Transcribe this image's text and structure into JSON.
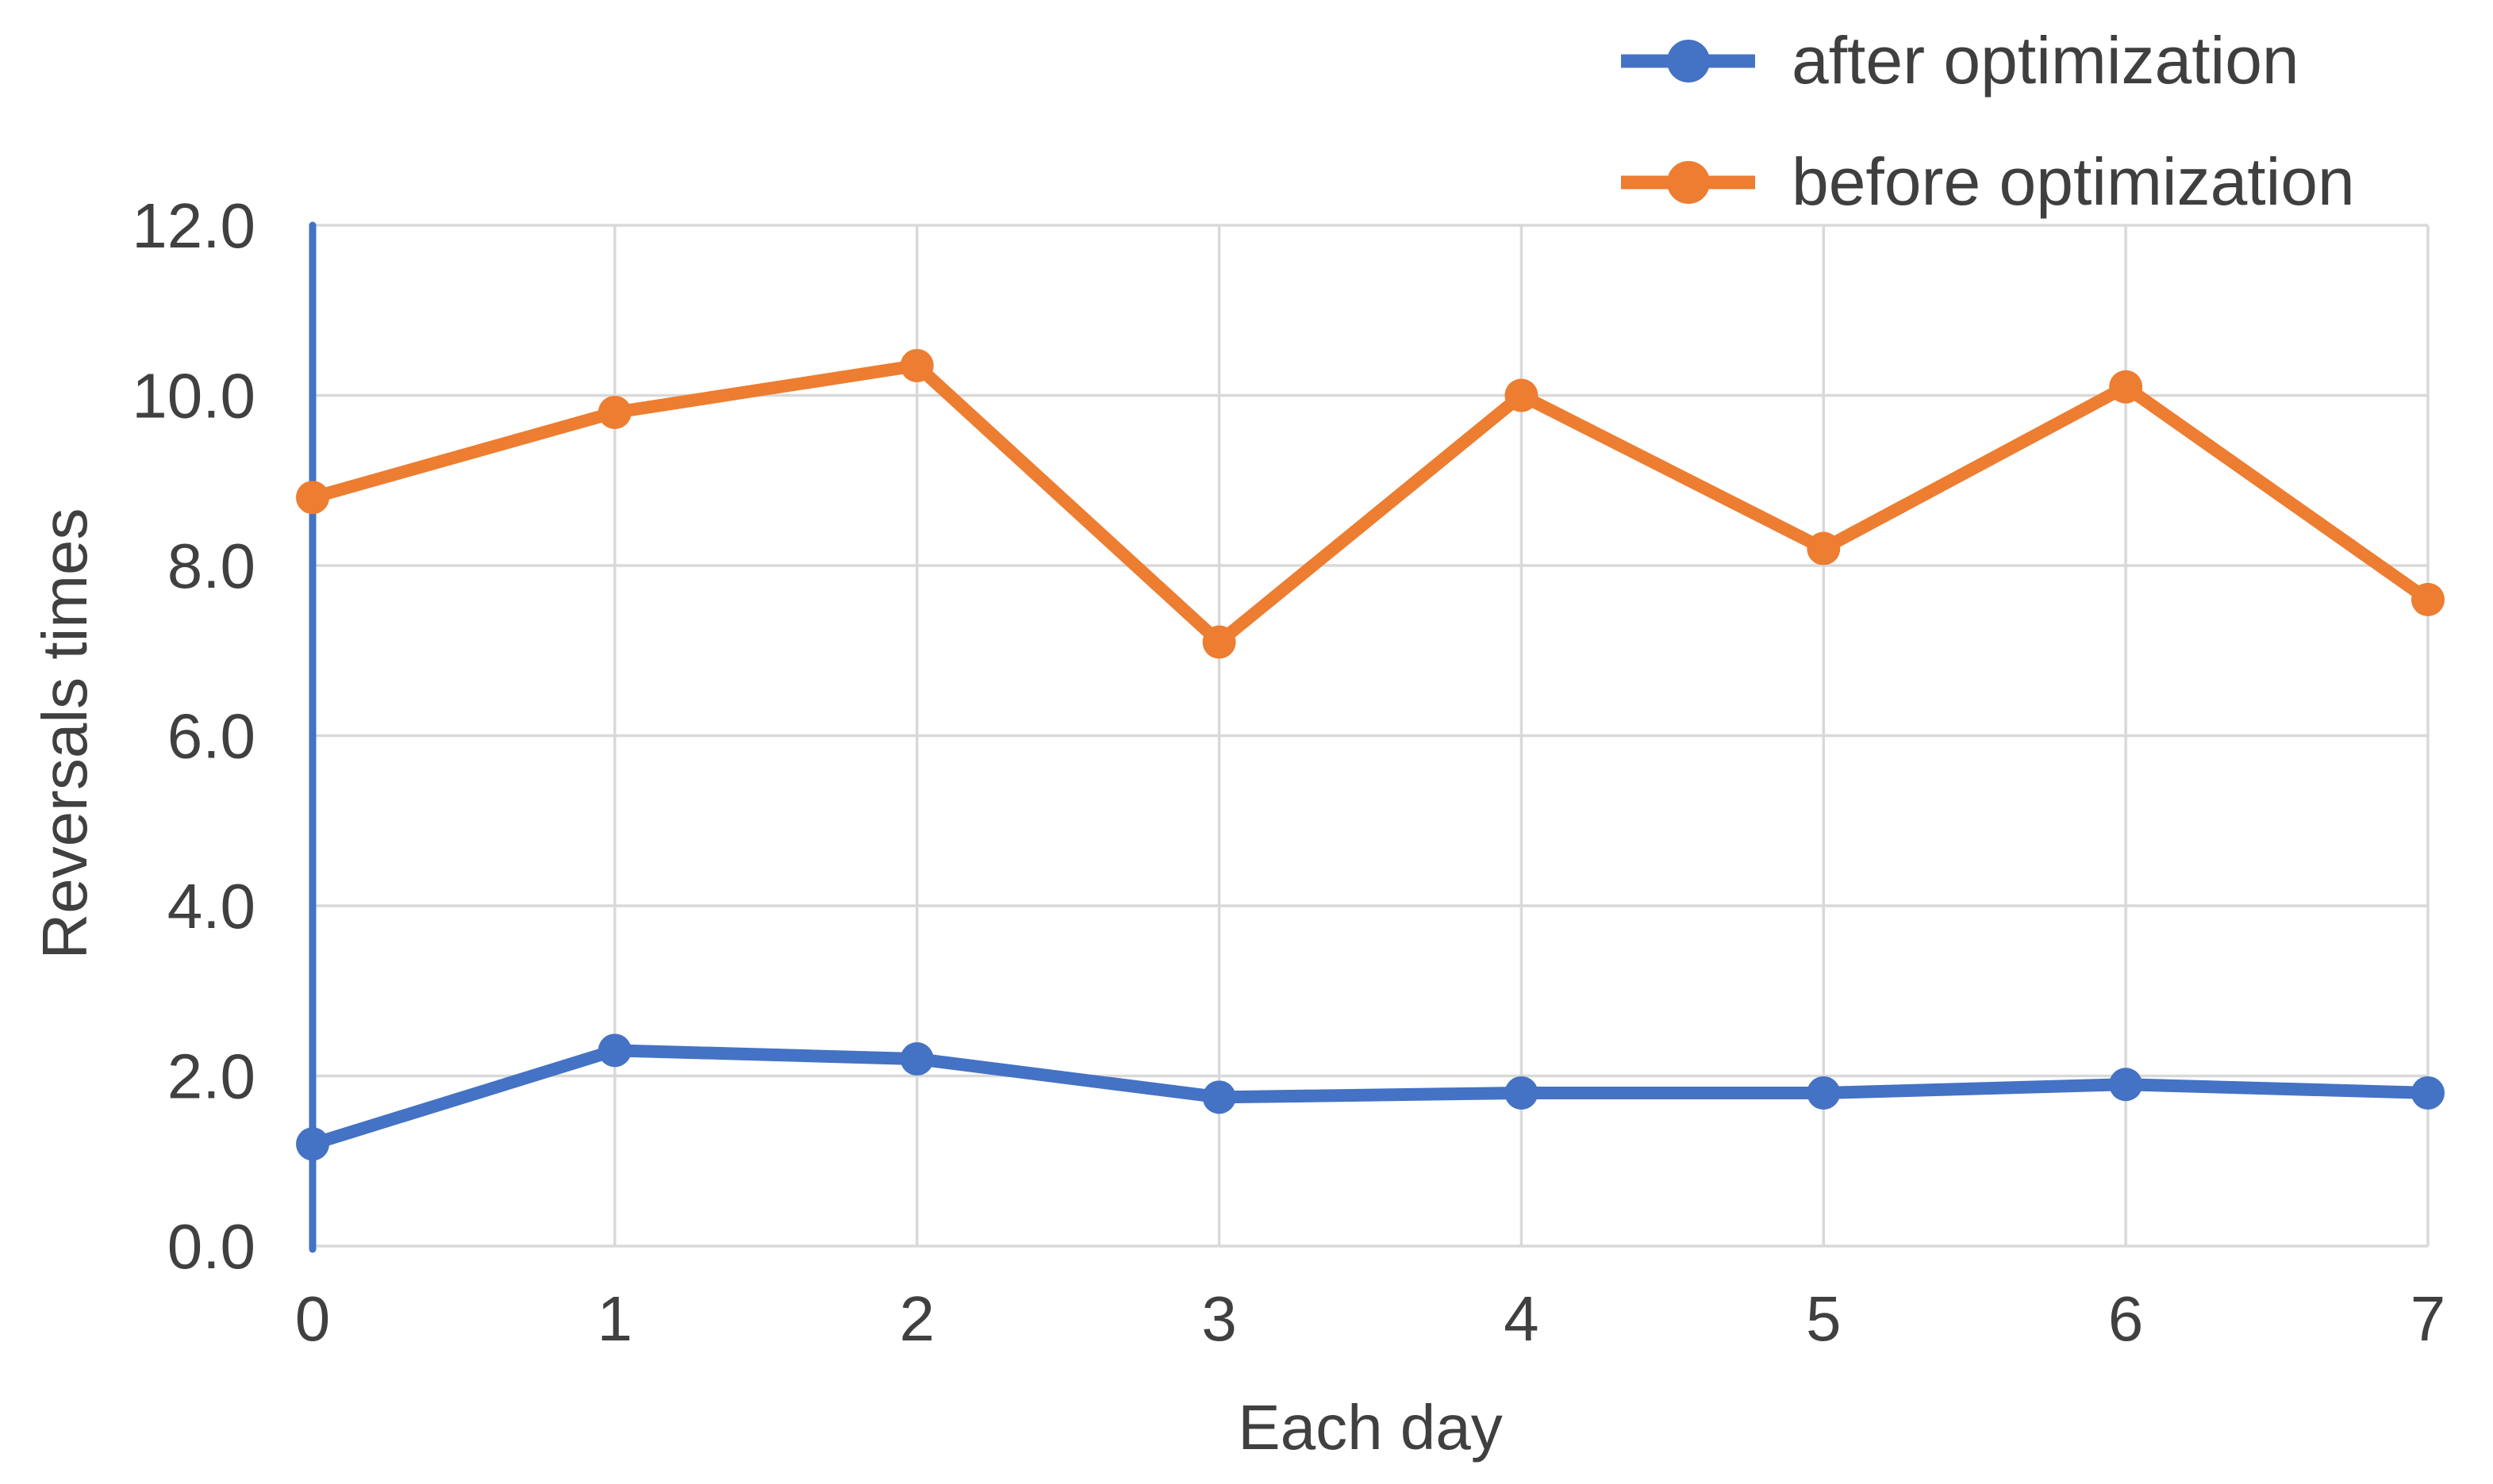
{
  "chart_data": {
    "type": "line",
    "x": [
      0,
      1,
      2,
      3,
      4,
      5,
      6,
      7
    ],
    "x_tick_labels": [
      "0",
      "1",
      "2",
      "3",
      "4",
      "5",
      "6",
      "7"
    ],
    "y_tick_labels": [
      "0.0",
      "2.0",
      "4.0",
      "6.0",
      "8.0",
      "10.0",
      "12.0"
    ],
    "xlim": [
      0,
      7
    ],
    "ylim": [
      0,
      12
    ],
    "y_tick_step": 2,
    "xlabel": "Each day",
    "ylabel": "Reversals times",
    "title": "",
    "grid": true,
    "legend_position": "top-right",
    "series": [
      {
        "name": "after optimization",
        "color": "#4472C4",
        "values": [
          1.2,
          2.3,
          2.2,
          1.75,
          1.8,
          1.8,
          1.9,
          1.8
        ]
      },
      {
        "name": "before optimization",
        "color": "#ED7D31",
        "values": [
          8.8,
          9.8,
          10.35,
          7.1,
          10.0,
          8.2,
          10.1,
          7.6
        ]
      }
    ],
    "axis_line_color": "#4472C4",
    "gridline_color": "#D9D9D9",
    "text_color": "#404040",
    "background": "#FFFFFF"
  }
}
